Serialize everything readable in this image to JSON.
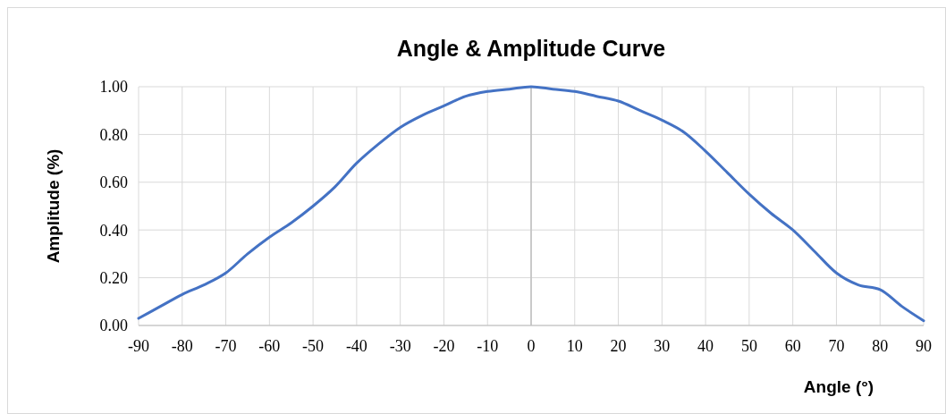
{
  "chart_data": {
    "type": "line",
    "title": "Angle & Amplitude Curve",
    "xlabel": "Angle (°)",
    "ylabel": "Amplitude (%)",
    "x": [
      -90,
      -85,
      -80,
      -75,
      -70,
      -65,
      -60,
      -55,
      -50,
      -45,
      -40,
      -35,
      -30,
      -25,
      -20,
      -15,
      -10,
      -5,
      0,
      5,
      10,
      15,
      20,
      25,
      30,
      35,
      40,
      45,
      50,
      55,
      60,
      65,
      70,
      75,
      80,
      85,
      90
    ],
    "series": [
      {
        "color": "#4472c4",
        "values": [
          0.03,
          0.08,
          0.13,
          0.17,
          0.22,
          0.3,
          0.37,
          0.43,
          0.5,
          0.58,
          0.68,
          0.76,
          0.83,
          0.88,
          0.92,
          0.96,
          0.98,
          0.99,
          1.0,
          0.99,
          0.98,
          0.96,
          0.94,
          0.9,
          0.86,
          0.81,
          0.73,
          0.64,
          0.55,
          0.47,
          0.4,
          0.31,
          0.22,
          0.17,
          0.15,
          0.08,
          0.02
        ]
      }
    ],
    "xlim": [
      -90,
      90
    ],
    "xticks": [
      -90,
      -80,
      -70,
      -60,
      -50,
      -40,
      -30,
      -20,
      -10,
      0,
      10,
      20,
      30,
      40,
      50,
      60,
      70,
      80,
      90
    ],
    "ylim": [
      0,
      1
    ],
    "yticks": [
      {
        "value": 0,
        "label": "0.00"
      },
      {
        "value": 0.2,
        "label": "0.20"
      },
      {
        "value": 0.4,
        "label": "0.40"
      },
      {
        "value": 0.6,
        "label": "0.60"
      },
      {
        "value": 0.8,
        "label": "0.80"
      },
      {
        "value": 1,
        "label": "1.00"
      }
    ],
    "grid": true,
    "marker": "none",
    "line_style": "solid",
    "ref_lines": [
      {
        "axis": "x",
        "value": 0,
        "color": "#bfbfbf"
      }
    ]
  }
}
